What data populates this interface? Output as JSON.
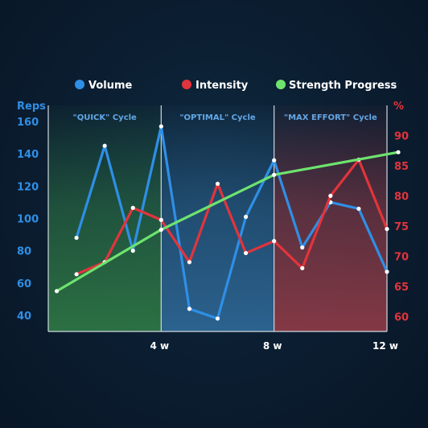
{
  "legend": [
    {
      "label": "Volume",
      "color": "#2f8fe6"
    },
    {
      "label": "Intensity",
      "color": "#e2343c"
    },
    {
      "label": "Strength Progress",
      "color": "#6ee36e"
    }
  ],
  "chart_data": {
    "type": "line",
    "ylabel_left": "Reps",
    "ylabel_right": "%",
    "xlim": [
      0,
      12
    ],
    "ylim_left": [
      30,
      170
    ],
    "ylim_right": [
      57.5,
      95
    ],
    "x_ticks": [
      {
        "value": 4,
        "label": "4 w"
      },
      {
        "value": 8,
        "label": "8 w"
      },
      {
        "value": 12,
        "label": "12 w"
      }
    ],
    "y_ticks_left": [
      40,
      60,
      80,
      100,
      120,
      140,
      160
    ],
    "y_ticks_right": [
      60,
      65,
      70,
      75,
      80,
      85,
      90
    ],
    "grid": false,
    "legend_position": "top",
    "cycles": [
      {
        "label": "\"QUICK\" Cycle",
        "from": 0,
        "to": 4,
        "color": "#2f7a45"
      },
      {
        "label": "\"OPTIMAL\" Cycle",
        "from": 4,
        "to": 8,
        "color": "#2f6a99"
      },
      {
        "label": "\"MAX EFFORT\" Cycle",
        "from": 8,
        "to": 12,
        "color": "#8a3a46"
      }
    ],
    "series": [
      {
        "name": "Volume",
        "axis": "left",
        "color": "#2f8fe6",
        "x": [
          1,
          2,
          3,
          4,
          5,
          6,
          7,
          8,
          9,
          10,
          11,
          12
        ],
        "values": [
          88,
          145,
          80,
          157,
          44,
          38,
          101,
          136,
          82,
          110,
          106,
          67
        ]
      },
      {
        "name": "Intensity",
        "axis": "right",
        "color": "#e2343c",
        "x": [
          1,
          2,
          3,
          4,
          5,
          6,
          7,
          8,
          9,
          10,
          11,
          12
        ],
        "values": [
          67,
          69,
          78,
          76,
          69,
          82,
          70.5,
          72.5,
          68,
          80,
          86,
          74.5
        ]
      },
      {
        "name": "Strength Progress",
        "axis": "left",
        "color": "#6ee36e",
        "x": [
          0.3,
          4,
          8,
          12.4
        ],
        "values": [
          55,
          93,
          127,
          141
        ]
      }
    ]
  }
}
